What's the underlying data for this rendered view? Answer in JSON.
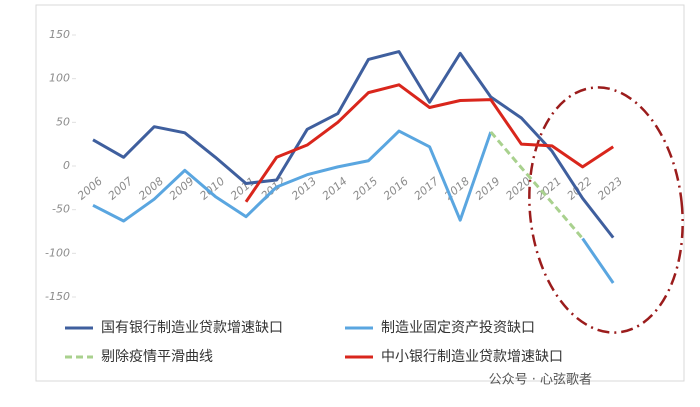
{
  "chart_data": {
    "type": "line",
    "categories": [
      "2006",
      "2007",
      "2008",
      "2009",
      "2010",
      "2011",
      "2012",
      "2013",
      "2014",
      "2015",
      "2016",
      "2017",
      "2018",
      "2019",
      "2020",
      "2021",
      "2022",
      "2023"
    ],
    "series": [
      {
        "name": "国有银行制造业贷款增速缺口",
        "color": "#3f5f9e",
        "values": [
          30,
          10,
          45,
          38,
          10,
          -20,
          -16,
          42,
          60,
          122,
          131,
          73,
          129,
          79,
          55,
          17,
          -37,
          -82
        ]
      },
      {
        "name": "制造业固定资产投资缺口",
        "color": "#5aa6e0",
        "values": [
          -45,
          -63,
          -38,
          -5,
          -35,
          -58,
          -24,
          -10,
          -1,
          6,
          40,
          22,
          -62,
          39,
          null,
          null,
          -83,
          -134
        ]
      },
      {
        "name": "剔除疫情平滑曲线",
        "color": "#a9d18e",
        "dashed": true,
        "values": [
          null,
          null,
          null,
          null,
          null,
          null,
          null,
          null,
          null,
          null,
          null,
          null,
          null,
          39,
          -2,
          -42,
          -83,
          null
        ]
      },
      {
        "name": "中小银行制造业贷款增速缺口",
        "color": "#d9261c",
        "values": [
          null,
          null,
          null,
          null,
          null,
          -41,
          10,
          24,
          50,
          84,
          93,
          67,
          75,
          76,
          25,
          23,
          -1,
          22
        ]
      }
    ],
    "ylim": [
      -150,
      150
    ],
    "yticks": [
      150,
      100,
      50,
      0,
      -50,
      -100,
      -150
    ],
    "watermark": "公众号 · 心弦歌者"
  }
}
